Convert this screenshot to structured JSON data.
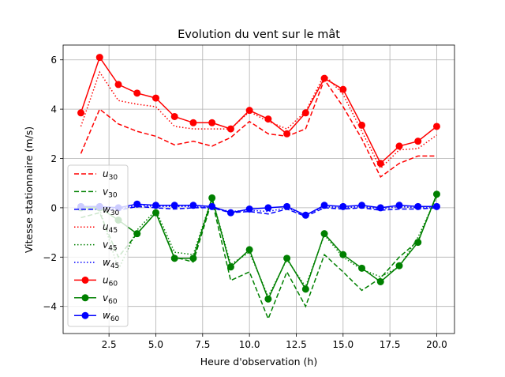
{
  "chart_data": {
    "type": "line",
    "title": "Evolution du vent sur le mât",
    "xlabel": "Heure d'observation (h)",
    "ylabel": "Vitesse stationnaire (m/s)",
    "xlim": [
      0.05,
      20.95
    ],
    "ylim": [
      -5.1,
      6.6
    ],
    "x_ticks": [
      2.5,
      5.0,
      7.5,
      10.0,
      12.5,
      15.0,
      17.5,
      20.0
    ],
    "x_tick_labels": [
      "2.5",
      "5.0",
      "7.5",
      "10.0",
      "12.5",
      "15.0",
      "17.5",
      "20.0"
    ],
    "y_ticks": [
      -4,
      -2,
      0,
      2,
      4,
      6
    ],
    "y_tick_labels": [
      "−4",
      "−2",
      "0",
      "2",
      "4",
      "6"
    ],
    "grid": true,
    "legend_position": "left",
    "x": [
      1,
      2,
      3,
      4,
      5,
      6,
      7,
      8,
      9,
      10,
      11,
      12,
      13,
      14,
      15,
      16,
      17,
      18,
      19,
      20
    ],
    "series": [
      {
        "name": "u30",
        "base": "u",
        "sub": "30",
        "color": "#ff0000",
        "dash": "dashed",
        "marker": false,
        "values": [
          2.2,
          4.0,
          3.4,
          3.1,
          2.9,
          2.55,
          2.7,
          2.5,
          2.85,
          3.5,
          3.0,
          2.9,
          3.2,
          5.2,
          4.1,
          2.8,
          1.25,
          1.8,
          2.1,
          2.1
        ]
      },
      {
        "name": "v30",
        "base": "v",
        "sub": "30",
        "color": "#008000",
        "dash": "dashed",
        "marker": false,
        "values": [
          -0.4,
          -0.2,
          -2.0,
          -1.05,
          -0.2,
          -2.0,
          -2.2,
          0.3,
          -2.95,
          -2.6,
          -4.5,
          -2.6,
          -4.0,
          -1.9,
          -2.6,
          -3.35,
          -2.85,
          -2.0,
          -1.35,
          0.5
        ]
      },
      {
        "name": "w30",
        "base": "w",
        "sub": "30",
        "color": "#0000ff",
        "dash": "dashed",
        "marker": false,
        "values": [
          -0.05,
          -0.05,
          -0.1,
          0.05,
          0.0,
          -0.05,
          0.0,
          0.0,
          -0.2,
          -0.15,
          -0.25,
          -0.05,
          -0.35,
          0.0,
          -0.05,
          0.0,
          -0.1,
          -0.05,
          -0.05,
          0.0
        ]
      },
      {
        "name": "u45",
        "base": "u",
        "sub": "45",
        "color": "#ff0000",
        "dash": "dotted",
        "marker": false,
        "values": [
          3.3,
          5.5,
          4.35,
          4.2,
          4.1,
          3.3,
          3.2,
          3.2,
          3.2,
          3.9,
          3.5,
          3.2,
          3.9,
          5.4,
          4.6,
          3.1,
          1.6,
          2.35,
          2.4,
          2.95
        ]
      },
      {
        "name": "v45",
        "base": "v",
        "sub": "45",
        "color": "#008000",
        "dash": "dotted",
        "marker": false,
        "values": [
          -0.1,
          -0.05,
          -2.5,
          -0.9,
          -0.1,
          -1.8,
          -1.9,
          0.4,
          -2.3,
          -1.8,
          -3.6,
          -2.1,
          -3.2,
          -1.1,
          -2.0,
          -2.5,
          -2.8,
          -2.4,
          -1.2,
          0.45
        ]
      },
      {
        "name": "w45",
        "base": "w",
        "sub": "45",
        "color": "#0000ff",
        "dash": "dotted",
        "marker": false,
        "values": [
          0.0,
          0.0,
          -0.05,
          0.1,
          0.05,
          0.05,
          0.05,
          0.0,
          -0.15,
          -0.1,
          -0.15,
          0.0,
          -0.3,
          0.05,
          0.0,
          0.05,
          -0.05,
          0.05,
          0.0,
          0.0
        ]
      },
      {
        "name": "u60",
        "base": "u",
        "sub": "60",
        "color": "#ff0000",
        "dash": "solid",
        "marker": true,
        "values": [
          3.85,
          6.1,
          5.0,
          4.65,
          4.45,
          3.7,
          3.45,
          3.45,
          3.2,
          3.95,
          3.6,
          3.0,
          3.85,
          5.25,
          4.8,
          3.35,
          1.8,
          2.5,
          2.7,
          3.3
        ]
      },
      {
        "name": "v60",
        "base": "v",
        "sub": "60",
        "color": "#008000",
        "dash": "solid",
        "marker": true,
        "values": [
          0.0,
          0.0,
          -0.5,
          -1.05,
          -0.2,
          -2.05,
          -2.05,
          0.4,
          -2.4,
          -1.7,
          -3.7,
          -2.05,
          -3.3,
          -1.05,
          -1.9,
          -2.45,
          -3.0,
          -2.35,
          -1.4,
          0.55
        ]
      },
      {
        "name": "w60",
        "base": "w",
        "sub": "60",
        "color": "#0000ff",
        "dash": "solid",
        "marker": true,
        "values": [
          0.05,
          0.05,
          0.0,
          0.15,
          0.1,
          0.1,
          0.1,
          0.05,
          -0.2,
          -0.05,
          0.0,
          0.05,
          -0.3,
          0.1,
          0.05,
          0.1,
          0.0,
          0.1,
          0.05,
          0.05
        ]
      }
    ]
  }
}
